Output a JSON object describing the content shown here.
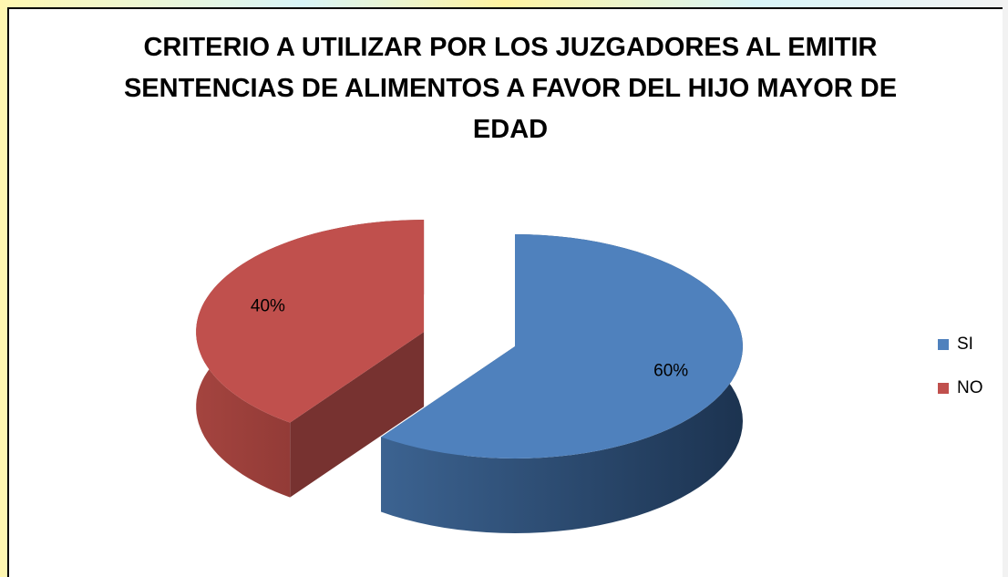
{
  "chart_data": {
    "type": "pie3d",
    "title": "CRITERIO A UTILIZAR POR LOS JUZGADORES AL EMITIR SENTENCIAS DE ALIMENTOS A FAVOR DEL HIJO MAYOR DE EDAD",
    "categories": [
      "SI",
      "NO"
    ],
    "values": [
      60,
      40
    ],
    "value_labels": [
      "60%",
      "40%"
    ],
    "colors": [
      "#4f81bd",
      "#c0504d"
    ],
    "legend": "right"
  }
}
